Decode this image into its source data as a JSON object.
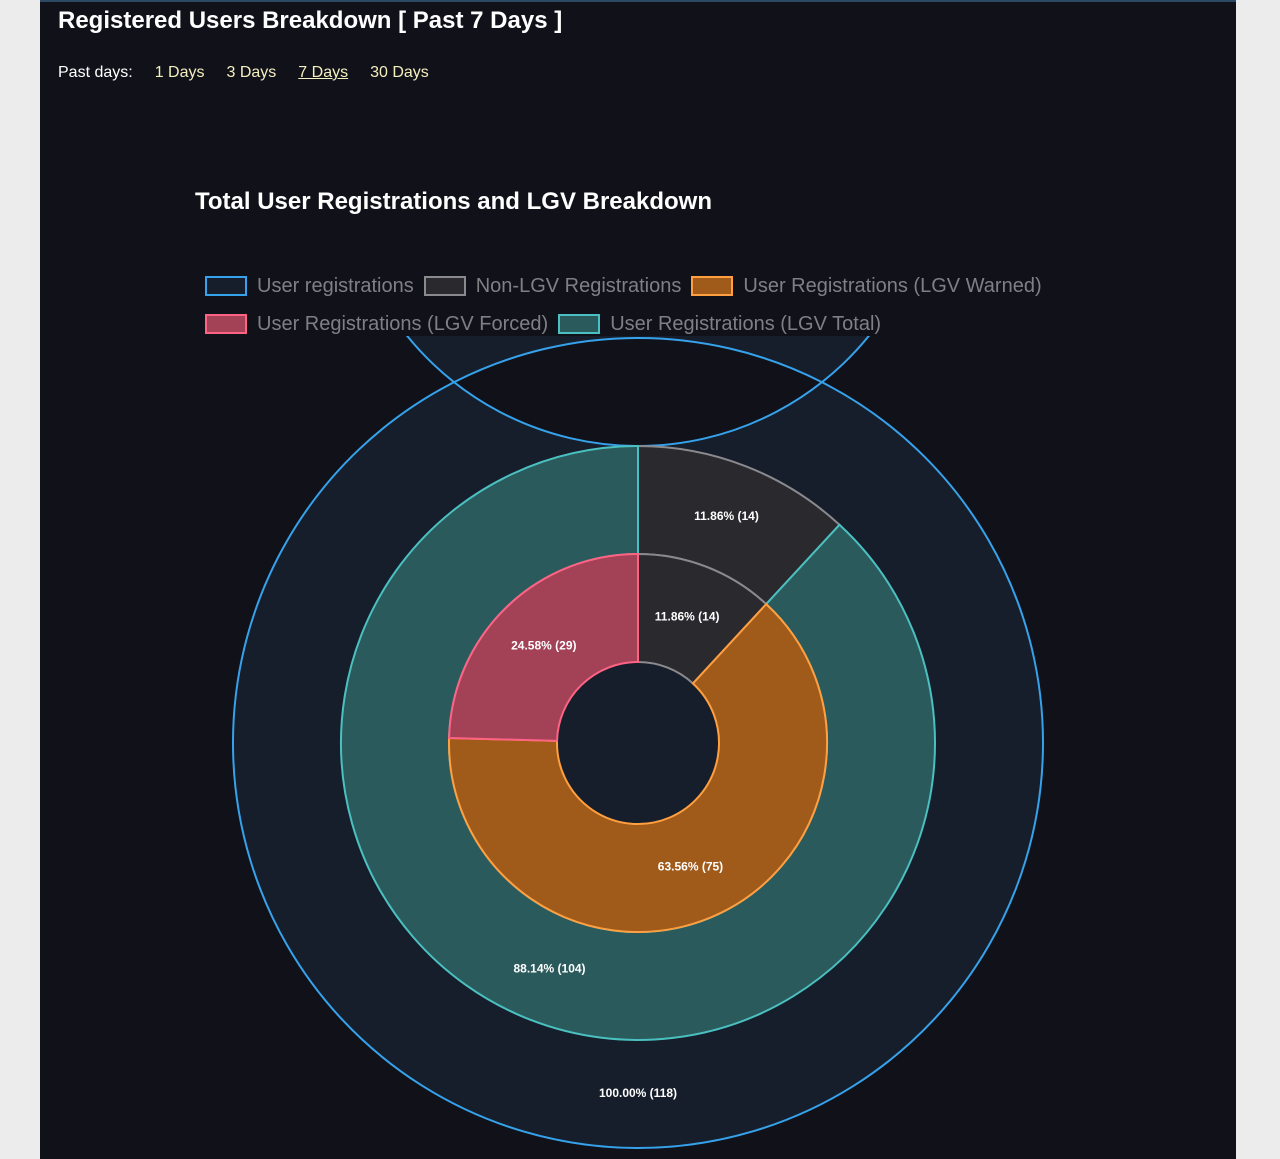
{
  "header": {
    "title": "Registered Users Breakdown [ Past 7 Days ]",
    "filter_label": "Past days:",
    "filters": [
      {
        "label": "1 Days",
        "active": false
      },
      {
        "label": "3 Days",
        "active": false
      },
      {
        "label": "7 Days",
        "active": true
      },
      {
        "label": "30 Days",
        "active": false
      }
    ]
  },
  "chart_data": {
    "type": "doughnut",
    "title": "Total User Registrations and LGV Breakdown",
    "legend": [
      {
        "label": "User registrations",
        "fill": "#161e2b",
        "stroke": "#36a2eb"
      },
      {
        "label": "Non-LGV Registrations",
        "fill": "#2a2a2e",
        "stroke": "#8a8a8e"
      },
      {
        "label": "User Registrations (LGV Warned)",
        "fill": "#a05a1a",
        "stroke": "#ff9f40"
      },
      {
        "label": "User Registrations (LGV Forced)",
        "fill": "#a34257",
        "stroke": "#ff6384"
      },
      {
        "label": "User Registrations (LGV Total)",
        "fill": "#2b5a5c",
        "stroke": "#4bc0c0"
      }
    ],
    "rings": [
      {
        "name": "outer",
        "slices": [
          {
            "series": "User registrations",
            "value": 118,
            "label": "100.00% (118)"
          }
        ]
      },
      {
        "name": "middle",
        "slices": [
          {
            "series": "Non-LGV Registrations",
            "value": 14,
            "label": "11.86% (14)"
          },
          {
            "series": "User Registrations (LGV Total)",
            "value": 104,
            "label": "88.14% (104)"
          }
        ]
      },
      {
        "name": "inner",
        "slices": [
          {
            "series": "Non-LGV Registrations",
            "value": 14,
            "label": "11.86% (14)"
          },
          {
            "series": "User Registrations (LGV Warned)",
            "value": 75,
            "label": "63.56% (75)"
          },
          {
            "series": "User Registrations (LGV Forced)",
            "value": 29,
            "label": "24.58% (29)"
          }
        ]
      }
    ]
  }
}
